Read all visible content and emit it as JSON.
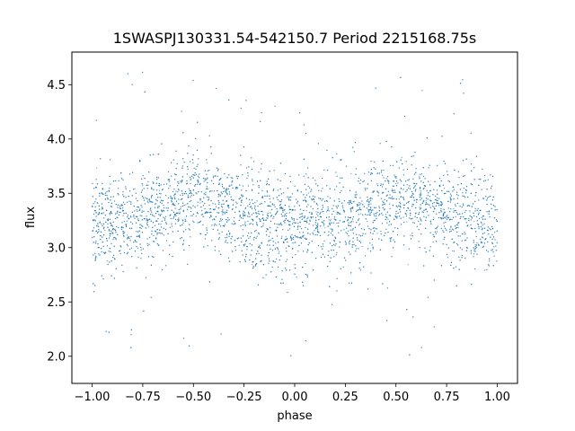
{
  "chart_data": {
    "type": "scatter",
    "title": "1SWASPJ130331.54-542150.7 Period 2215168.75s",
    "xlabel": "phase",
    "ylabel": "flux",
    "xlim": [
      -1.1,
      1.1
    ],
    "ylim": [
      1.75,
      4.8
    ],
    "xticks": [
      -1.0,
      -0.75,
      -0.5,
      -0.25,
      0.0,
      0.25,
      0.5,
      0.75,
      1.0
    ],
    "xtick_labels": [
      "−1.00",
      "−0.75",
      "−0.50",
      "−0.25",
      "0.00",
      "0.25",
      "0.50",
      "0.75",
      "1.00"
    ],
    "yticks": [
      2.0,
      2.5,
      3.0,
      3.5,
      4.0,
      4.5
    ],
    "ytick_labels": [
      "2.0",
      "2.5",
      "3.0",
      "3.5",
      "4.0",
      "4.5"
    ],
    "grid": false,
    "marker_color": "#1f77b4",
    "series": [
      {
        "x_range": [
          -1.0,
          1.0
        ],
        "trend": {
          "phase": [
            -1.0,
            -0.9,
            -0.8,
            -0.7,
            -0.6,
            -0.5,
            -0.4,
            -0.3,
            -0.2,
            -0.1,
            0.0,
            0.1,
            0.2,
            0.3,
            0.4,
            0.5,
            0.6,
            0.7,
            0.8,
            0.9,
            1.0
          ],
          "median_flux": [
            3.22,
            3.22,
            3.26,
            3.33,
            3.42,
            3.48,
            3.42,
            3.32,
            3.25,
            3.2,
            3.2,
            3.22,
            3.24,
            3.3,
            3.38,
            3.44,
            3.42,
            3.35,
            3.28,
            3.24,
            3.22
          ]
        },
        "scatter_sigma": 0.22
      }
    ]
  }
}
